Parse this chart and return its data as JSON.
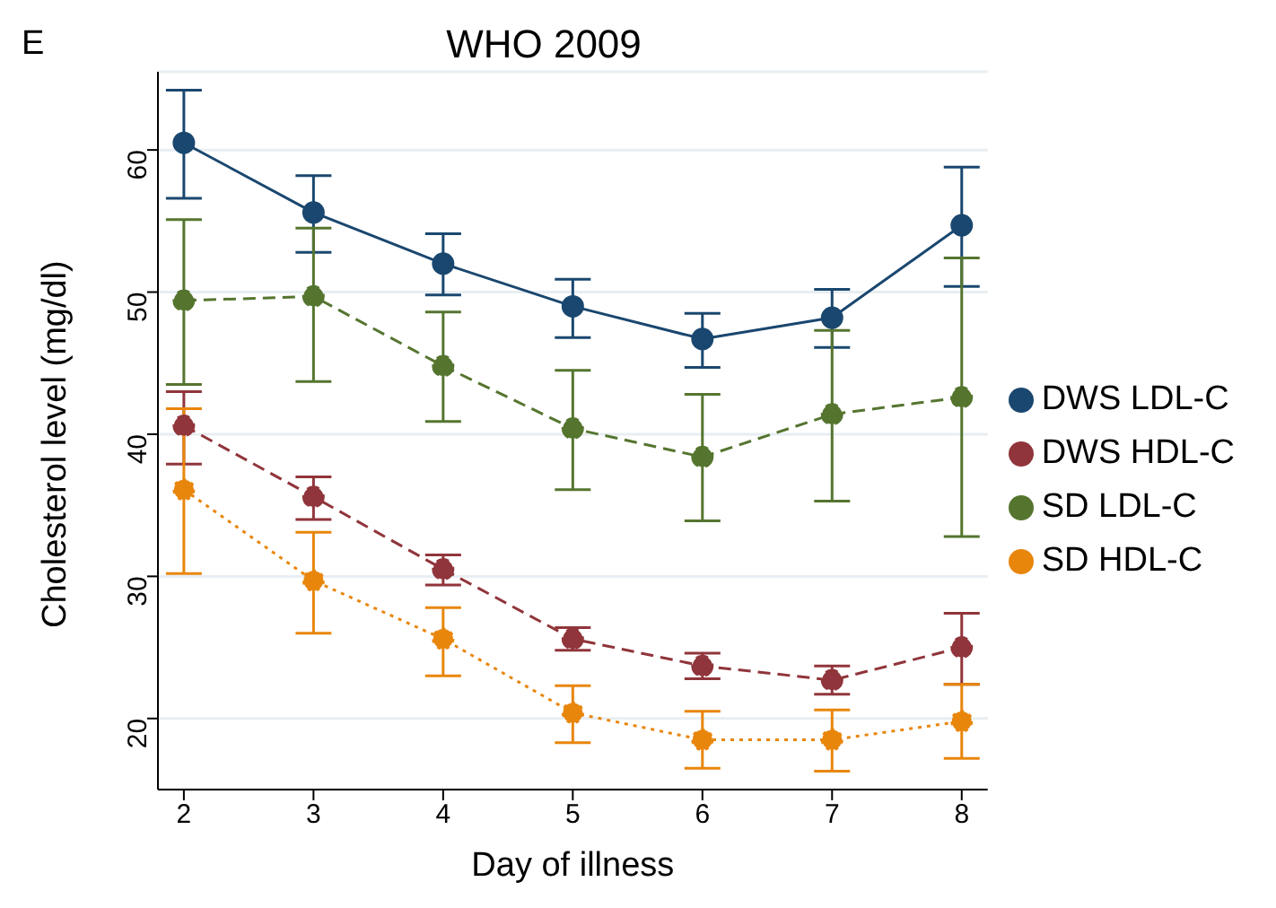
{
  "chart_data": {
    "type": "line",
    "title": "WHO 2009",
    "annotations": [
      "E"
    ],
    "xlabel": "Day of illness",
    "ylabel": "Cholesterol level (mg/dl)",
    "x": [
      2,
      3,
      4,
      5,
      6,
      7,
      8
    ],
    "xlim": [
      1.8,
      8.2
    ],
    "xticks": [
      2,
      3,
      4,
      5,
      6,
      7,
      8
    ],
    "ylim": [
      15,
      65.5
    ],
    "yticks": [
      20,
      30,
      40,
      50,
      60
    ],
    "grid": "y",
    "legend": "right",
    "marker": "circle",
    "series": [
      {
        "name": "DWS LDL-C",
        "color": "#1a476f",
        "line_style": "solid",
        "values": [
          60.5,
          55.6,
          52.0,
          49.0,
          46.7,
          48.2,
          54.7
        ],
        "errors": [
          [
            56.6,
            64.2
          ],
          [
            52.8,
            58.2
          ],
          [
            49.8,
            54.1
          ],
          [
            46.8,
            50.9
          ],
          [
            44.7,
            48.5
          ],
          [
            46.1,
            50.2
          ],
          [
            50.4,
            58.8
          ]
        ]
      },
      {
        "name": "DWS HDL-C",
        "color": "#90353b",
        "line_style": "dashed",
        "values": [
          40.6,
          35.6,
          30.5,
          25.6,
          23.7,
          22.7,
          25.0
        ],
        "errors": [
          [
            37.9,
            43.0
          ],
          [
            34.0,
            37.0
          ],
          [
            29.4,
            31.5
          ],
          [
            24.8,
            26.4
          ],
          [
            22.8,
            24.6
          ],
          [
            21.7,
            23.7
          ],
          [
            22.4,
            27.4
          ]
        ]
      },
      {
        "name": "SD LDL-C",
        "color": "#55752f",
        "line_style": "dashed",
        "values": [
          49.4,
          49.7,
          44.8,
          40.4,
          38.4,
          41.4,
          42.6
        ],
        "errors": [
          [
            43.5,
            55.1
          ],
          [
            43.7,
            54.5
          ],
          [
            40.9,
            48.6
          ],
          [
            36.1,
            44.5
          ],
          [
            33.9,
            42.8
          ],
          [
            35.3,
            47.3
          ],
          [
            32.8,
            52.4
          ]
        ]
      },
      {
        "name": "SD HDL-C",
        "color": "#e8860c",
        "line_style": "dotted",
        "values": [
          36.1,
          29.7,
          25.6,
          20.4,
          18.5,
          18.5,
          19.8
        ],
        "errors": [
          [
            30.2,
            41.8
          ],
          [
            26.0,
            33.1
          ],
          [
            23.0,
            27.8
          ],
          [
            18.3,
            22.3
          ],
          [
            16.5,
            20.5
          ],
          [
            16.3,
            20.6
          ],
          [
            17.2,
            22.4
          ]
        ]
      }
    ]
  }
}
